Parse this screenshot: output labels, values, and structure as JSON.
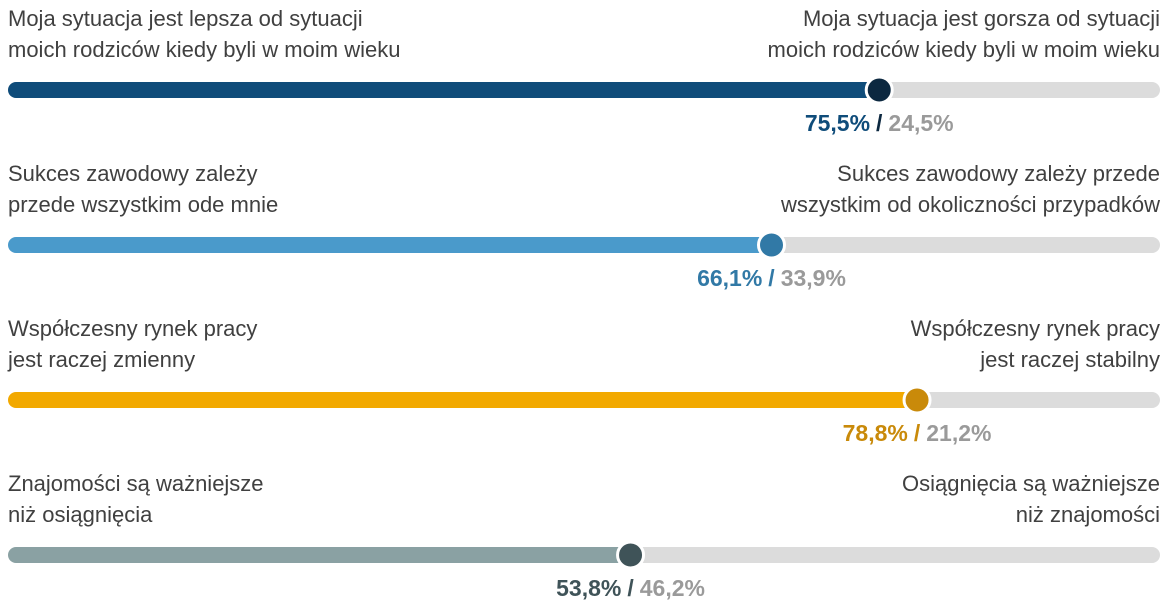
{
  "chart_data": {
    "type": "slider",
    "xlim": [
      0,
      100
    ],
    "separator": "/",
    "track_color": "#dcdcdc",
    "right_value_color": "#9a9a9a",
    "items": [
      {
        "left_label": [
          "Moja sytuacja jest lepsza od sytuacji",
          "moich rodziców kiedy byli w moim wieku"
        ],
        "right_label": [
          "Moja sytuacja jest gorsza od sytuacji",
          "moich rodziców kiedy byli w moim wieku"
        ],
        "values": [
          75.5,
          24.5
        ],
        "value_labels": [
          "75,5%",
          "24,5%"
        ],
        "color": "#0f4c7a",
        "knob_color": "#0c2840"
      },
      {
        "left_label": [
          "Sukces zawodowy zależy",
          "przede wszystkim ode mnie"
        ],
        "right_label": [
          "Sukces zawodowy zależy przede",
          "wszystkim od okoliczności przypadków"
        ],
        "values": [
          66.1,
          33.9
        ],
        "value_labels": [
          "66,1%",
          "33,9%"
        ],
        "color": "#4a9acb",
        "knob_color": "#3179a6"
      },
      {
        "left_label": [
          "Współczesny rynek pracy",
          "jest raczej zmienny"
        ],
        "right_label": [
          "Współczesny rynek pracy",
          "jest raczej stabilny"
        ],
        "values": [
          78.8,
          21.2
        ],
        "value_labels": [
          "78,8%",
          "21,2%"
        ],
        "color": "#f2a900",
        "knob_color": "#c98a0a"
      },
      {
        "left_label": [
          "Znajomości są ważniejsze",
          "niż osiągnięcia"
        ],
        "right_label": [
          "Osiągnięcia są ważniejsze",
          "niż znajomości"
        ],
        "values": [
          53.8,
          46.2
        ],
        "value_labels": [
          "53,8%",
          "46,2%"
        ],
        "color": "#8aa1a3",
        "knob_color": "#3f5358"
      }
    ]
  }
}
